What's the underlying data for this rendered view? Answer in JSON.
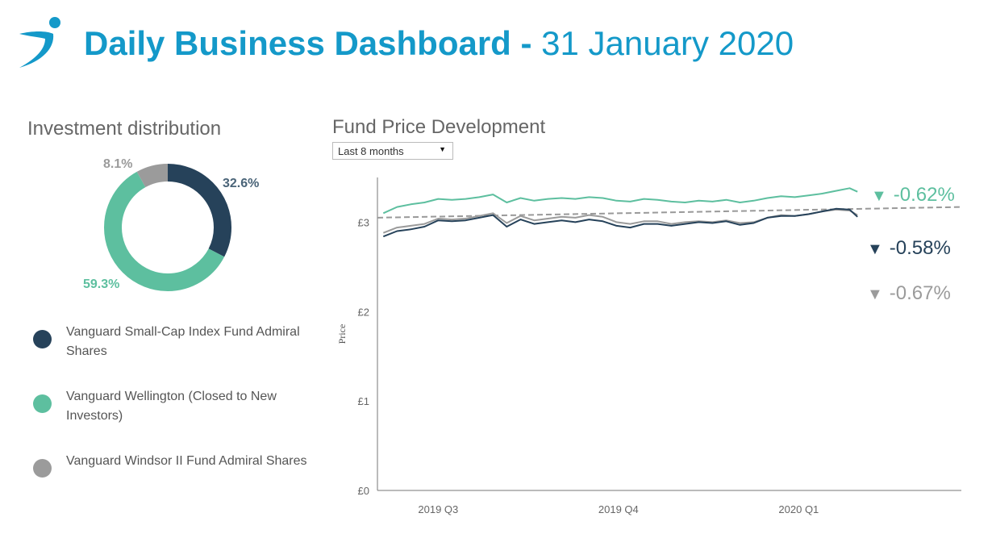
{
  "header": {
    "title_main": "Daily Business Dashboard - ",
    "title_date": "31 January 2020",
    "logo_icon": "person-swoosh-logo-icon"
  },
  "distribution": {
    "title": "Investment distribution",
    "slices": [
      {
        "label": "Vanguard Small-Cap Index Fund Admiral Shares",
        "pct": 32.6,
        "pct_label": "32.6%",
        "color": "#26425a"
      },
      {
        "label": "Vanguard Wellington (Closed to New Investors)",
        "pct": 59.3,
        "pct_label": "59.3%",
        "color": "#5dbf9f"
      },
      {
        "label": "Vanguard Windsor II Fund Admiral Shares",
        "pct": 8.1,
        "pct_label": "8.1%",
        "color": "#9b9b9b"
      }
    ]
  },
  "fund": {
    "title": "Fund Price Development",
    "range_select": {
      "selected": "Last 8 months",
      "icon": "caret-down-icon"
    },
    "changes": [
      {
        "text": "-0.62%",
        "color": "#5dbf9f",
        "icon": "triangle-down-icon"
      },
      {
        "text": "-0.58%",
        "color": "#26425a",
        "icon": "triangle-down-icon"
      },
      {
        "text": "-0.67%",
        "color": "#9b9b9b",
        "icon": "triangle-down-icon"
      }
    ]
  },
  "chart_data": {
    "type": "line",
    "ylabel": "Price",
    "ylim": [
      0,
      3.5
    ],
    "y_ticks": [
      {
        "value": 0,
        "label": "£0"
      },
      {
        "value": 1,
        "label": "£1"
      },
      {
        "value": 2,
        "label": "£2"
      },
      {
        "value": 3,
        "label": "£3"
      }
    ],
    "x_ticks": [
      "2019 Q3",
      "2019 Q4",
      "2020 Q1"
    ],
    "x_range": [
      "2019-05-31",
      "2020-03-24"
    ],
    "x_tick_dates": [
      "2019-07-01",
      "2019-10-01",
      "2020-01-01"
    ],
    "trend_line": {
      "x": [
        "2019-05-31",
        "2020-03-24"
      ],
      "y": [
        3.05,
        3.17
      ],
      "color": "#999999"
    },
    "series": [
      {
        "color": "#5dbf9f",
        "x": [
          "2019-06-03",
          "2019-06-10",
          "2019-06-17",
          "2019-06-24",
          "2019-07-01",
          "2019-07-08",
          "2019-07-15",
          "2019-07-22",
          "2019-07-29",
          "2019-08-05",
          "2019-08-12",
          "2019-08-19",
          "2019-08-26",
          "2019-09-02",
          "2019-09-09",
          "2019-09-16",
          "2019-09-23",
          "2019-09-30",
          "2019-10-07",
          "2019-10-14",
          "2019-10-21",
          "2019-10-28",
          "2019-11-04",
          "2019-11-11",
          "2019-11-18",
          "2019-11-25",
          "2019-12-02",
          "2019-12-09",
          "2019-12-16",
          "2019-12-23",
          "2019-12-30",
          "2020-01-06",
          "2020-01-13",
          "2020-01-20",
          "2020-01-27",
          "2020-01-31"
        ],
        "y": [
          3.1,
          3.17,
          3.2,
          3.22,
          3.26,
          3.25,
          3.26,
          3.28,
          3.31,
          3.22,
          3.27,
          3.24,
          3.26,
          3.27,
          3.26,
          3.28,
          3.27,
          3.24,
          3.23,
          3.26,
          3.25,
          3.23,
          3.22,
          3.24,
          3.23,
          3.25,
          3.22,
          3.24,
          3.27,
          3.29,
          3.28,
          3.3,
          3.32,
          3.35,
          3.38,
          3.34
        ]
      },
      {
        "color": "#26425a",
        "x": [
          "2019-06-03",
          "2019-06-10",
          "2019-06-17",
          "2019-06-24",
          "2019-07-01",
          "2019-07-08",
          "2019-07-15",
          "2019-07-22",
          "2019-07-29",
          "2019-08-05",
          "2019-08-12",
          "2019-08-19",
          "2019-08-26",
          "2019-09-02",
          "2019-09-09",
          "2019-09-16",
          "2019-09-23",
          "2019-09-30",
          "2019-10-07",
          "2019-10-14",
          "2019-10-21",
          "2019-10-28",
          "2019-11-04",
          "2019-11-11",
          "2019-11-18",
          "2019-11-25",
          "2019-12-02",
          "2019-12-09",
          "2019-12-16",
          "2019-12-23",
          "2019-12-30",
          "2020-01-06",
          "2020-01-13",
          "2020-01-20",
          "2020-01-27",
          "2020-01-31"
        ],
        "y": [
          2.84,
          2.9,
          2.92,
          2.95,
          3.02,
          3.01,
          3.02,
          3.05,
          3.08,
          2.95,
          3.03,
          2.98,
          3.0,
          3.02,
          3.0,
          3.03,
          3.01,
          2.96,
          2.94,
          2.98,
          2.98,
          2.96,
          2.98,
          3.0,
          2.99,
          3.01,
          2.97,
          2.99,
          3.05,
          3.07,
          3.07,
          3.09,
          3.12,
          3.15,
          3.14,
          3.06
        ]
      },
      {
        "color": "#9b9b9b",
        "x": [
          "2019-06-03",
          "2019-06-10",
          "2019-06-17",
          "2019-06-24",
          "2019-07-01",
          "2019-07-08",
          "2019-07-15",
          "2019-07-22",
          "2019-07-29",
          "2019-08-05",
          "2019-08-12",
          "2019-08-19",
          "2019-08-26",
          "2019-09-02",
          "2019-09-09",
          "2019-09-16",
          "2019-09-23",
          "2019-09-30",
          "2019-10-07",
          "2019-10-14",
          "2019-10-21",
          "2019-10-28",
          "2019-11-04",
          "2019-11-11",
          "2019-11-18",
          "2019-11-25",
          "2019-12-02",
          "2019-12-09",
          "2019-12-16",
          "2019-12-23",
          "2019-12-30",
          "2020-01-06",
          "2020-01-13",
          "2020-01-20",
          "2020-01-27",
          "2020-01-31"
        ],
        "y": [
          2.88,
          2.94,
          2.96,
          2.98,
          3.04,
          3.03,
          3.04,
          3.07,
          3.1,
          2.99,
          3.07,
          3.02,
          3.04,
          3.06,
          3.05,
          3.08,
          3.06,
          3.0,
          2.98,
          3.01,
          3.01,
          2.98,
          3.0,
          3.01,
          3.0,
          3.02,
          2.99,
          3.0,
          3.05,
          3.08,
          3.07,
          3.09,
          3.12,
          3.14,
          3.13,
          3.08
        ]
      }
    ]
  }
}
